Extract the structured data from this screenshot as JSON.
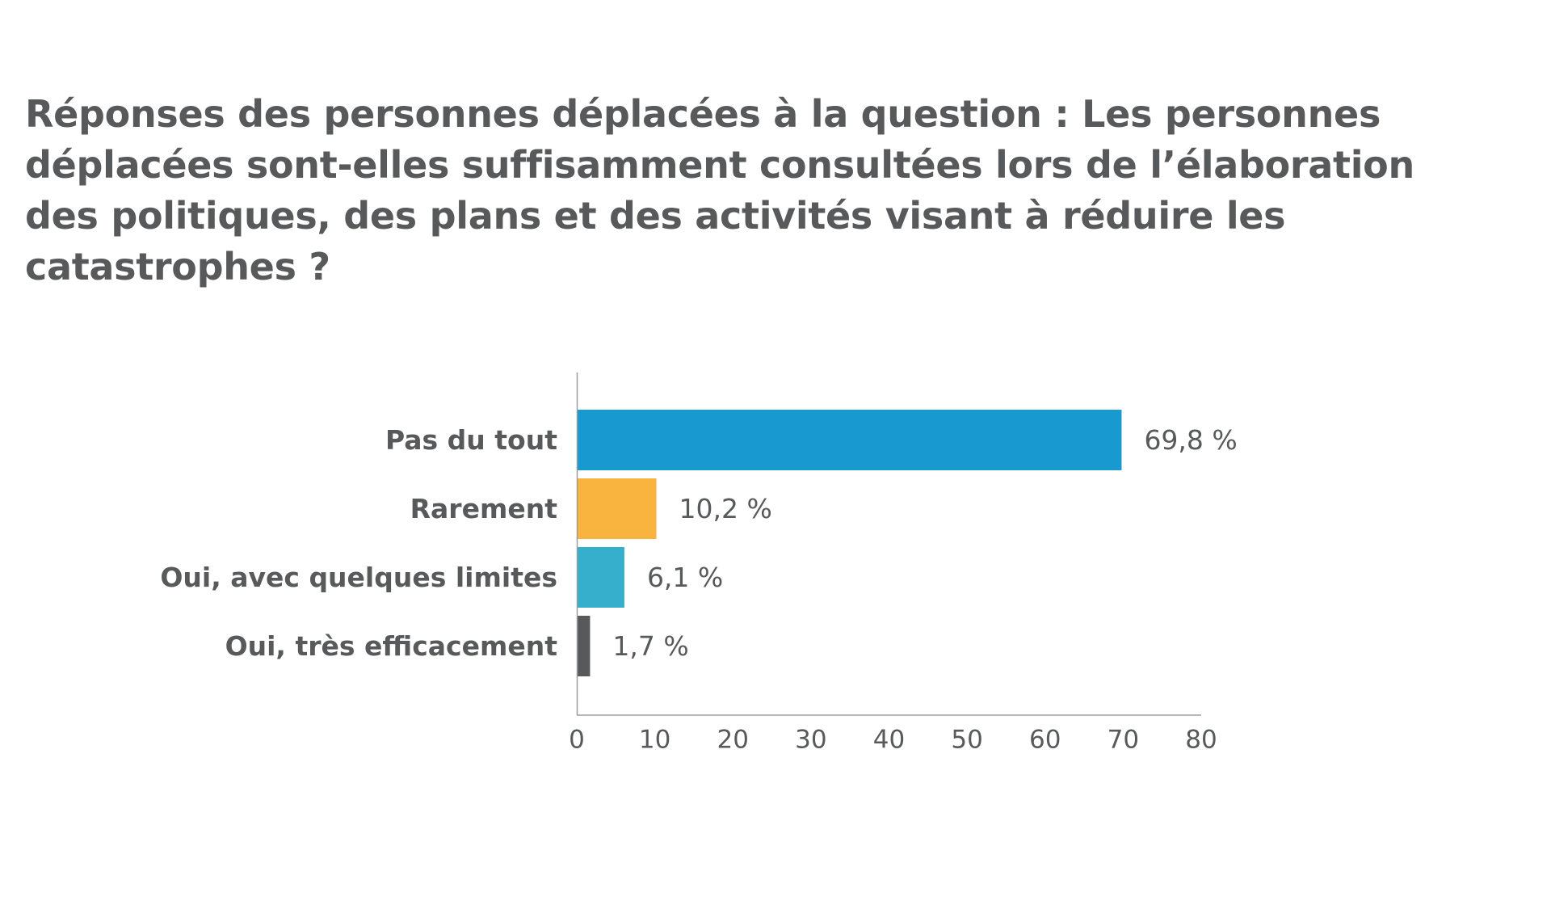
{
  "chart_data": {
    "type": "bar",
    "orientation": "horizontal",
    "title": "Réponses des personnes déplacées à la question : Les personnes déplacées sont-elles suffisamment consultées lors de l’élaboration des politiques, des plans et des activités visant à réduire les catastrophes ?",
    "categories": [
      "Pas du tout",
      "Rarement",
      "Oui, avec quelques limites",
      "Oui, très efficacement"
    ],
    "values": [
      69.8,
      10.2,
      6.1,
      1.7
    ],
    "value_labels": [
      "69,8 %",
      "10,2 %",
      "6,1 %",
      "1,7 %"
    ],
    "colors": [
      "#1899cf",
      "#f9b33f",
      "#36afcd",
      "#58595b"
    ],
    "xlim": [
      0,
      80
    ],
    "xticks": [
      0,
      10,
      20,
      30,
      40,
      50,
      60,
      70,
      80
    ],
    "xtick_labels": [
      "0",
      "10",
      "20",
      "30",
      "40",
      "50",
      "60",
      "70",
      "80"
    ],
    "xlabel": "",
    "ylabel": "",
    "grid": false,
    "legend": "none"
  }
}
